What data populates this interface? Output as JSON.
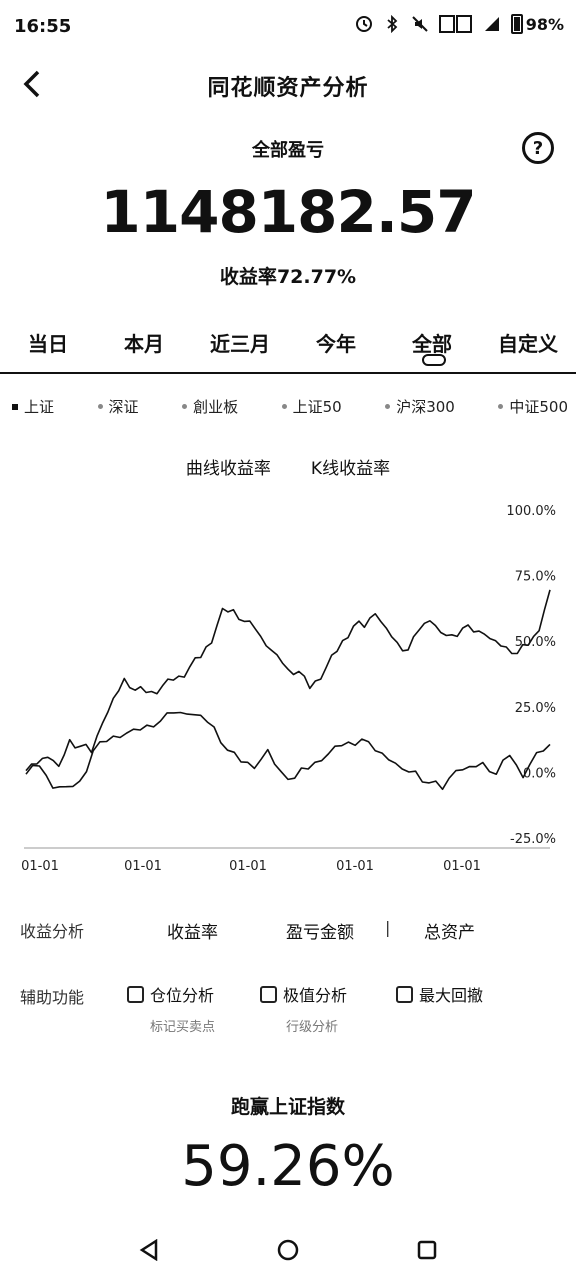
{
  "status": {
    "time": "16:55",
    "battery": "98%"
  },
  "header": {
    "title": "同花顺资产分析"
  },
  "summary": {
    "label": "全部盈亏",
    "value": "1148182.57",
    "rate_label": "收益率",
    "rate_value": "72.77%"
  },
  "period_tabs": [
    "当日",
    "本月",
    "近三月",
    "今年",
    "全部",
    "自定义"
  ],
  "active_period": "全部",
  "index_legend": [
    "上证",
    "深证",
    "創业板",
    "上证50",
    "沪深300",
    "中证500"
  ],
  "chart_modes": [
    "曲线收益率",
    "K线收益率"
  ],
  "chart_data": {
    "type": "line",
    "y_tick_labels": [
      "100.0%",
      "75.0%",
      "50.0%",
      "25.0%",
      "0.0%",
      "-25.0%"
    ],
    "x_tick_labels": [
      "01-01",
      "01-01",
      "01-01",
      "01-01",
      "01-01"
    ],
    "ylim": [
      -25,
      100
    ],
    "series": [
      {
        "values": [
          0,
          3,
          6,
          3,
          12,
          10,
          8,
          18,
          28,
          36,
          32,
          30,
          30,
          36,
          36,
          40,
          44,
          50,
          62,
          62,
          58,
          54,
          48,
          45,
          40,
          38,
          32,
          36,
          44,
          50,
          56,
          56,
          60,
          55,
          50,
          46,
          54,
          58,
          54,
          52,
          55,
          54,
          52,
          50,
          48,
          46,
          48,
          54,
          70
        ]
      },
      {
        "values": [
          0,
          2,
          -6,
          -5,
          -4,
          8,
          12,
          14,
          16,
          18,
          20,
          22,
          22,
          22,
          18,
          8,
          4,
          2,
          8,
          0,
          -2,
          2,
          4,
          10,
          12,
          12,
          8,
          5,
          2,
          0,
          -4,
          -6,
          0,
          2,
          4,
          0,
          6,
          -2,
          8,
          10
        ]
      }
    ]
  },
  "analysis": {
    "label": "收益分析",
    "options": [
      "收益率",
      "盈亏金额",
      "总资产"
    ],
    "separator": "|"
  },
  "aux": {
    "label": "辅助功能",
    "options": [
      {
        "label": "仓位分析",
        "sub": "标记买卖点"
      },
      {
        "label": "极值分析",
        "sub": "行级分析"
      },
      {
        "label": "最大回撤",
        "sub": ""
      }
    ]
  },
  "beat": {
    "label": "跑赢上证指数",
    "value": "59.26%"
  }
}
